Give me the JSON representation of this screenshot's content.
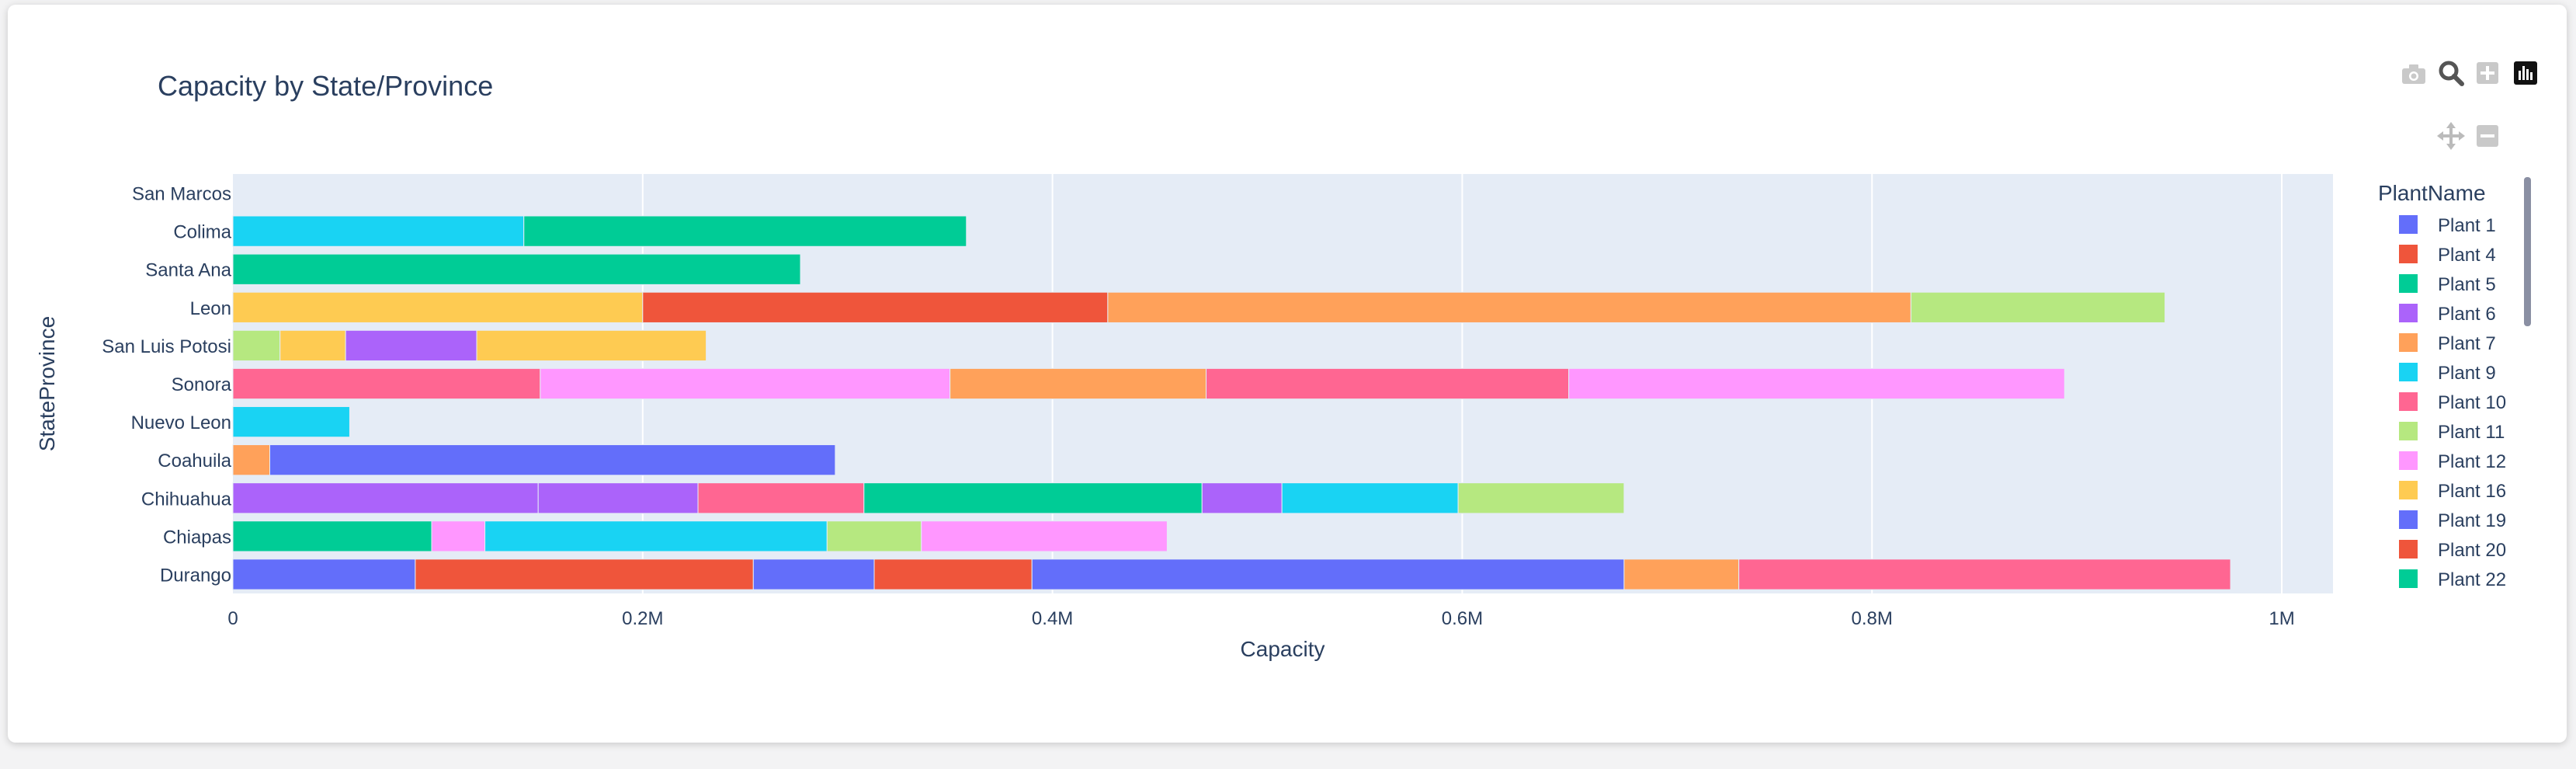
{
  "chart_data": {
    "type": "bar",
    "orientation": "horizontal",
    "barmode": "stack",
    "title": "Capacity by State/Province",
    "xlabel": "Capacity",
    "ylabel": "StateProvince",
    "xlim": [
      0,
      1025000
    ],
    "xticks": [
      {
        "value": 0,
        "label": "0"
      },
      {
        "value": 200000,
        "label": "0.2M"
      },
      {
        "value": 400000,
        "label": "0.4M"
      },
      {
        "value": 600000,
        "label": "0.6M"
      },
      {
        "value": 800000,
        "label": "0.8M"
      },
      {
        "value": 1000000,
        "label": "1M"
      }
    ],
    "grid": true,
    "legend_title": "PlantName",
    "legend_position": "right",
    "categories": [
      "San Marcos",
      "Colima",
      "Santa Ana",
      "Leon",
      "San Luis Potosi",
      "Sonora",
      "Nuevo Leon",
      "Coahuila",
      "Chihuahua",
      "Chiapas",
      "Durango"
    ],
    "series": [
      {
        "name": "Plant 1",
        "color": "#636efa"
      },
      {
        "name": "Plant 4",
        "color": "#ef553b"
      },
      {
        "name": "Plant 5",
        "color": "#00cc96"
      },
      {
        "name": "Plant 6",
        "color": "#ab63fa"
      },
      {
        "name": "Plant 7",
        "color": "#ffa15a"
      },
      {
        "name": "Plant 9",
        "color": "#19d3f3"
      },
      {
        "name": "Plant 10",
        "color": "#ff6692"
      },
      {
        "name": "Plant 11",
        "color": "#b6e880"
      },
      {
        "name": "Plant 12",
        "color": "#ff97ff"
      },
      {
        "name": "Plant 16",
        "color": "#fecb52"
      },
      {
        "name": "Plant 19",
        "color": "#636efa"
      },
      {
        "name": "Plant 20",
        "color": "#ef553b"
      },
      {
        "name": "Plant 22",
        "color": "#00cc96"
      }
    ],
    "segments": [
      {
        "category": "Colima",
        "series": "Plant 9",
        "value": 142000
      },
      {
        "category": "Colima",
        "series": "Plant 5",
        "value": 216000
      },
      {
        "category": "Santa Ana",
        "series": "Plant 22",
        "value": 277000
      },
      {
        "category": "Leon",
        "series": "Plant 16",
        "value": 200000
      },
      {
        "category": "Leon",
        "series": "Plant 20",
        "value": 227000
      },
      {
        "category": "Leon",
        "series": "Plant 7",
        "value": 392000
      },
      {
        "category": "Leon",
        "series": "Plant 11",
        "value": 124000
      },
      {
        "category": "San Luis Potosi",
        "series": "Plant 11",
        "value": 23000
      },
      {
        "category": "San Luis Potosi",
        "series": "Plant 16",
        "value": 32000
      },
      {
        "category": "San Luis Potosi",
        "series": "Plant 6",
        "value": 64000
      },
      {
        "category": "San Luis Potosi",
        "series": "Plant 16",
        "value": 112000
      },
      {
        "category": "Sonora",
        "series": "Plant 10",
        "value": 150000
      },
      {
        "category": "Sonora",
        "series": "Plant 12",
        "value": 200000
      },
      {
        "category": "Sonora",
        "series": "Plant 7",
        "value": 125000
      },
      {
        "category": "Sonora",
        "series": "Plant 10",
        "value": 177000
      },
      {
        "category": "Sonora",
        "series": "Plant 12",
        "value": 242000
      },
      {
        "category": "Nuevo Leon",
        "series": "Plant 9",
        "value": 57000
      },
      {
        "category": "Coahuila",
        "series": "Plant 7",
        "value": 18000
      },
      {
        "category": "Coahuila",
        "series": "Plant 1",
        "value": 276000
      },
      {
        "category": "Chihuahua",
        "series": "Plant 6",
        "value": 149000
      },
      {
        "category": "Chihuahua",
        "series": "Plant 6",
        "value": 78000
      },
      {
        "category": "Chihuahua",
        "series": "Plant 10",
        "value": 81000
      },
      {
        "category": "Chihuahua",
        "series": "Plant 5",
        "value": 165000
      },
      {
        "category": "Chihuahua",
        "series": "Plant 6",
        "value": 39000
      },
      {
        "category": "Chihuahua",
        "series": "Plant 9",
        "value": 86000
      },
      {
        "category": "Chihuahua",
        "series": "Plant 11",
        "value": 81000
      },
      {
        "category": "Chiapas",
        "series": "Plant 5",
        "value": 97000
      },
      {
        "category": "Chiapas",
        "series": "Plant 12",
        "value": 26000
      },
      {
        "category": "Chiapas",
        "series": "Plant 9",
        "value": 167000
      },
      {
        "category": "Chiapas",
        "series": "Plant 11",
        "value": 46000
      },
      {
        "category": "Chiapas",
        "series": "Plant 12",
        "value": 120000
      },
      {
        "category": "Durango",
        "series": "Plant 1",
        "value": 89000
      },
      {
        "category": "Durango",
        "series": "Plant 4",
        "value": 165000
      },
      {
        "category": "Durango",
        "series": "Plant 1",
        "value": 59000
      },
      {
        "category": "Durango",
        "series": "Plant 4",
        "value": 77000
      },
      {
        "category": "Durango",
        "series": "Plant 19",
        "value": 289000
      },
      {
        "category": "Durango",
        "series": "Plant 7",
        "value": 56000
      },
      {
        "category": "Durango",
        "series": "Plant 10",
        "value": 240000
      }
    ]
  },
  "legend": {
    "title": "PlantName",
    "items": [
      "Plant 1",
      "Plant 4",
      "Plant 5",
      "Plant 6",
      "Plant 7",
      "Plant 9",
      "Plant 10",
      "Plant 11",
      "Plant 12",
      "Plant 16",
      "Plant 19",
      "Plant 20",
      "Plant 22"
    ]
  },
  "toolbar": {
    "buttons": [
      "camera-icon",
      "zoom-icon",
      "zoom-in-icon",
      "plotly-logo-icon",
      "pan-icon",
      "zoom-out-icon"
    ]
  }
}
